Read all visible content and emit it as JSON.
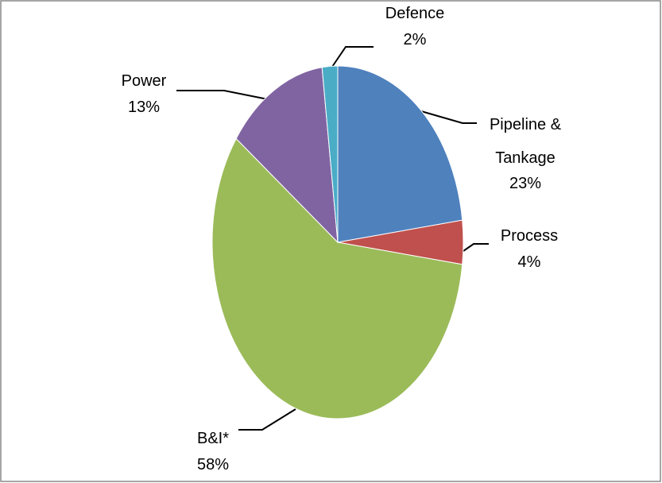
{
  "chart_data": {
    "type": "pie",
    "categories": [
      "Pipeline & Tankage",
      "Process",
      "B&I*",
      "Power",
      "Defence"
    ],
    "values": [
      23,
      4,
      58,
      13,
      2
    ],
    "value_labels": [
      "23%",
      "4%",
      "58%",
      "13%",
      "2%"
    ],
    "colors": [
      "#4f81bd",
      "#c0504d",
      "#9bbb59",
      "#8064a2",
      "#4bacc6"
    ]
  }
}
